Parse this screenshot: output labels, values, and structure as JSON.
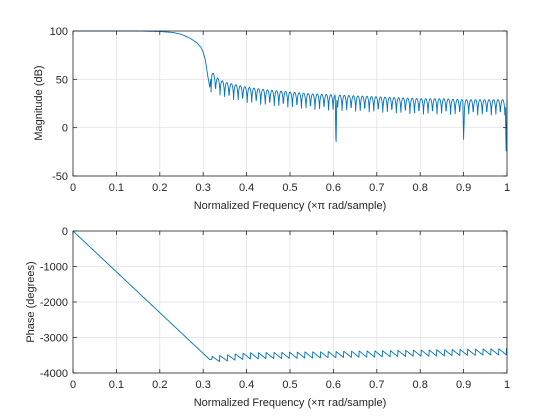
{
  "chart_data": [
    {
      "type": "line",
      "title": "",
      "xlabel": "Normalized Frequency  (×π rad/sample)",
      "ylabel": "Magnitude (dB)",
      "xlim": [
        0,
        1
      ],
      "ylim": [
        -50,
        100
      ],
      "grid": true,
      "x_ticks": [
        0,
        0.1,
        0.2,
        0.3,
        0.4,
        0.5,
        0.6,
        0.7,
        0.8,
        0.9,
        1
      ],
      "x_tick_labels": [
        "0",
        "0.1",
        "0.2",
        "0.3",
        "0.4",
        "0.5",
        "0.6",
        "0.7",
        "0.8",
        "0.9",
        "1"
      ],
      "y_ticks": [
        -50,
        0,
        50,
        100
      ],
      "y_tick_labels": [
        "-50",
        "0",
        "50",
        "100"
      ],
      "line_color": "#0072BD",
      "series": [
        {
          "x": [
            0,
            0.05,
            0.1,
            0.15,
            0.2,
            0.23,
            0.25,
            0.27,
            0.285,
            0.295,
            0.3,
            0.305,
            0.31,
            0.315,
            0.32,
            0.33,
            0.35,
            0.4,
            0.45,
            0.5,
            0.55,
            0.6,
            0.65,
            0.7,
            0.75,
            0.8,
            0.85,
            0.9,
            0.95,
            1
          ],
          "values": [
            100,
            100,
            100,
            100,
            99.5,
            98.5,
            96.5,
            92.5,
            88,
            83,
            78,
            70,
            55,
            42,
            58,
            52,
            47,
            42,
            39,
            37,
            35,
            34,
            33,
            32,
            31,
            30,
            30,
            29,
            29,
            29
          ]
        }
      ],
      "dips": [
        {
          "x": 0.606,
          "value": -22
        },
        {
          "x": 0.9,
          "value": -12
        },
        {
          "x": 0.998,
          "value": -28
        }
      ]
    },
    {
      "type": "line",
      "title": "",
      "xlabel": "Normalized Frequency  (×π rad/sample)",
      "ylabel": "Phase (degrees)",
      "xlim": [
        0,
        1
      ],
      "ylim": [
        -4000,
        0
      ],
      "grid": true,
      "x_ticks": [
        0,
        0.1,
        0.2,
        0.3,
        0.4,
        0.5,
        0.6,
        0.7,
        0.8,
        0.9,
        1
      ],
      "x_tick_labels": [
        "0",
        "0.1",
        "0.2",
        "0.3",
        "0.4",
        "0.5",
        "0.6",
        "0.7",
        "0.8",
        "0.9",
        "1"
      ],
      "y_ticks": [
        -4000,
        -3000,
        -2000,
        -1000,
        0
      ],
      "y_tick_labels": [
        "-4000",
        "-3000",
        "-2000",
        "-1000",
        "0"
      ],
      "line_color": "#0072BD",
      "series": [
        {
          "x": [
            0,
            0.1,
            0.2,
            0.3,
            0.315,
            0.4,
            0.5,
            0.6,
            0.7,
            0.8,
            0.9,
            1
          ],
          "values": [
            0,
            -1150,
            -2300,
            -3450,
            -3620,
            -3520,
            -3500,
            -3480,
            -3460,
            -3440,
            -3420,
            -3400
          ]
        }
      ]
    }
  ]
}
